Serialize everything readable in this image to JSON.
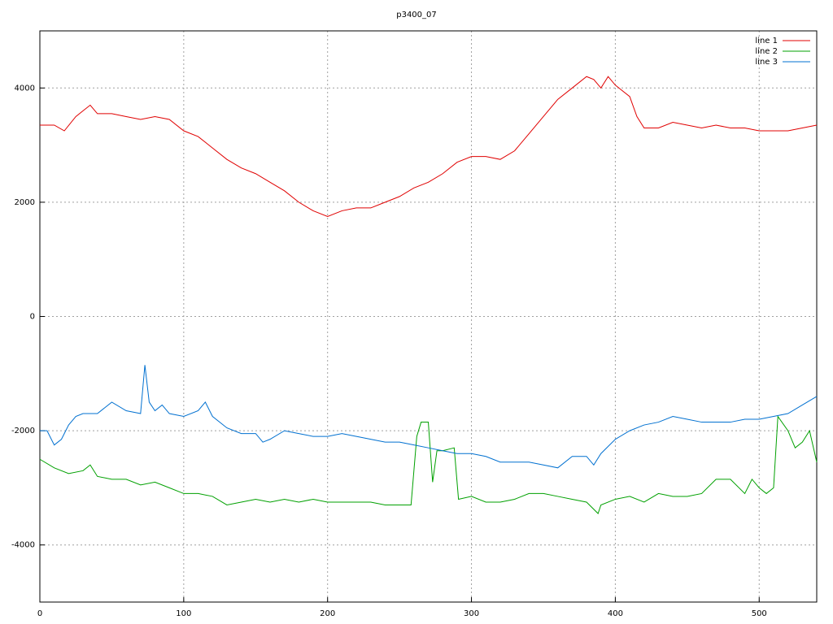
{
  "chart_data": {
    "type": "line",
    "title": "p3400_07",
    "grid": true,
    "legend": "top-right",
    "xlim": [
      0,
      540
    ],
    "xticks": [
      0,
      100,
      200,
      300,
      400,
      500
    ],
    "ylim": [
      -5000,
      5000
    ],
    "yticks": [
      -4000,
      -2000,
      0,
      2000,
      4000
    ],
    "series": [
      {
        "name": "line 1",
        "color": "#e00000",
        "x": [
          0,
          10,
          17,
          25,
          30,
          35,
          40,
          50,
          60,
          70,
          80,
          90,
          100,
          110,
          120,
          130,
          140,
          150,
          160,
          170,
          180,
          190,
          200,
          210,
          220,
          230,
          240,
          250,
          260,
          270,
          280,
          290,
          300,
          310,
          320,
          330,
          340,
          350,
          360,
          370,
          380,
          385,
          390,
          395,
          400,
          410,
          415,
          420,
          430,
          440,
          450,
          460,
          470,
          480,
          490,
          500,
          510,
          520,
          530,
          540
        ],
        "values": [
          3350,
          3350,
          3250,
          3500,
          3600,
          3700,
          3550,
          3550,
          3500,
          3450,
          3500,
          3450,
          3250,
          3150,
          2950,
          2750,
          2600,
          2500,
          2350,
          2200,
          2000,
          1850,
          1750,
          1850,
          1900,
          1900,
          2000,
          2100,
          2250,
          2350,
          2500,
          2700,
          2800,
          2800,
          2750,
          2900,
          3200,
          3500,
          3800,
          4000,
          4200,
          4150,
          4000,
          4200,
          4050,
          3850,
          3500,
          3300,
          3300,
          3400,
          3350,
          3300,
          3350,
          3300,
          3300,
          3250,
          3250,
          3250,
          3300,
          3350
        ]
      },
      {
        "name": "line 2",
        "color": "#00a000",
        "x": [
          0,
          10,
          20,
          30,
          35,
          40,
          50,
          60,
          70,
          80,
          90,
          100,
          110,
          120,
          130,
          140,
          150,
          160,
          170,
          180,
          190,
          200,
          210,
          220,
          230,
          240,
          250,
          258,
          262,
          265,
          270,
          273,
          276,
          280,
          288,
          291,
          300,
          310,
          320,
          330,
          340,
          350,
          360,
          370,
          380,
          388,
          390,
          400,
          410,
          420,
          430,
          440,
          450,
          460,
          470,
          480,
          490,
          495,
          500,
          505,
          510,
          513,
          520,
          525,
          530,
          535,
          540
        ],
        "values": [
          -2500,
          -2650,
          -2750,
          -2700,
          -2600,
          -2800,
          -2850,
          -2850,
          -2950,
          -2900,
          -3000,
          -3100,
          -3100,
          -3150,
          -3300,
          -3250,
          -3200,
          -3250,
          -3200,
          -3250,
          -3200,
          -3250,
          -3250,
          -3250,
          -3250,
          -3300,
          -3300,
          -3300,
          -2100,
          -1850,
          -1850,
          -2900,
          -2350,
          -2350,
          -2300,
          -3200,
          -3150,
          -3250,
          -3250,
          -3200,
          -3100,
          -3100,
          -3150,
          -3200,
          -3250,
          -3450,
          -3300,
          -3200,
          -3150,
          -3250,
          -3100,
          -3150,
          -3150,
          -3100,
          -2850,
          -2850,
          -3100,
          -2850,
          -3000,
          -3100,
          -3000,
          -1750,
          -2000,
          -2300,
          -2200,
          -2000,
          -2550
        ]
      },
      {
        "name": "line 3",
        "color": "#0070d0",
        "x": [
          0,
          5,
          10,
          15,
          20,
          25,
          30,
          40,
          50,
          60,
          70,
          73,
          76,
          80,
          85,
          90,
          100,
          110,
          115,
          120,
          130,
          140,
          150,
          155,
          160,
          170,
          180,
          190,
          200,
          210,
          220,
          230,
          240,
          250,
          260,
          270,
          280,
          290,
          300,
          310,
          320,
          330,
          340,
          350,
          360,
          370,
          380,
          385,
          390,
          400,
          410,
          420,
          430,
          440,
          450,
          460,
          470,
          480,
          490,
          500,
          510,
          520,
          530,
          540
        ],
        "values": [
          -2000,
          -2000,
          -2250,
          -2150,
          -1900,
          -1750,
          -1700,
          -1700,
          -1500,
          -1650,
          -1700,
          -850,
          -1500,
          -1650,
          -1550,
          -1700,
          -1750,
          -1650,
          -1500,
          -1750,
          -1950,
          -2050,
          -2050,
          -2200,
          -2150,
          -2000,
          -2050,
          -2100,
          -2100,
          -2050,
          -2100,
          -2150,
          -2200,
          -2200,
          -2250,
          -2300,
          -2350,
          -2400,
          -2400,
          -2450,
          -2550,
          -2550,
          -2550,
          -2600,
          -2650,
          -2450,
          -2450,
          -2600,
          -2400,
          -2150,
          -2000,
          -1900,
          -1850,
          -1750,
          -1800,
          -1850,
          -1850,
          -1850,
          -1800,
          -1800,
          -1750,
          -1700,
          -1550,
          -1400
        ]
      }
    ]
  }
}
